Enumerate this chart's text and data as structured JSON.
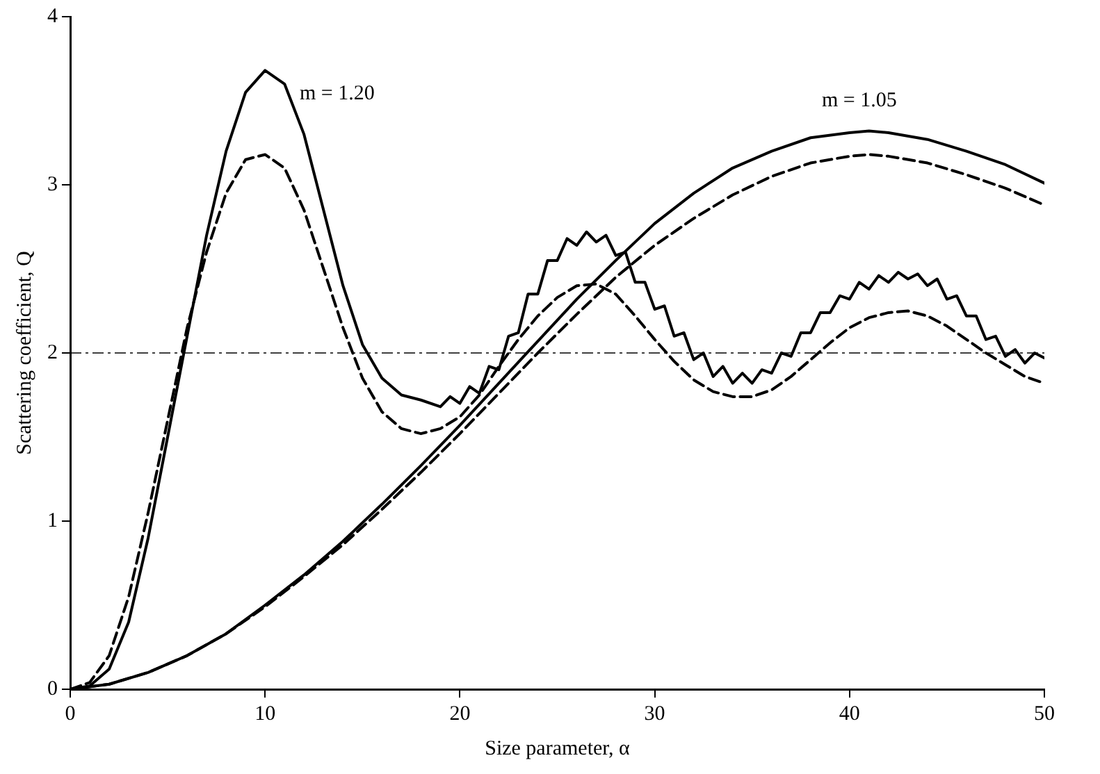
{
  "chart_data": {
    "type": "line",
    "xlabel": "Size parameter, α",
    "ylabel": "Scattering coefficient, Q",
    "xlim": [
      0,
      50
    ],
    "ylim": [
      0,
      4
    ],
    "xticks": [
      0,
      10,
      20,
      30,
      40,
      50
    ],
    "yticks": [
      0,
      1,
      2,
      3,
      4
    ],
    "grid": false,
    "legend": false,
    "marker": "none",
    "series": [
      {
        "color": "#000000",
        "line_style": "solid",
        "x": [
          0,
          1,
          2,
          3,
          4,
          5,
          6,
          7,
          8,
          9,
          10,
          11,
          12,
          13,
          14,
          15,
          16,
          17,
          18,
          19,
          19.5,
          20,
          20.5,
          21,
          21.5,
          22,
          22.5,
          23,
          23.5,
          24,
          24.5,
          25,
          25.5,
          26,
          26.5,
          27,
          27.5,
          28,
          28.5,
          29,
          29.5,
          30,
          30.5,
          31,
          31.5,
          32,
          32.5,
          33,
          33.5,
          34,
          34.5,
          35,
          35.5,
          36,
          36.5,
          37,
          37.5,
          38,
          38.5,
          39,
          39.5,
          40,
          40.5,
          41,
          41.5,
          42,
          42.5,
          43,
          43.5,
          44,
          44.5,
          45,
          45.5,
          46,
          46.5,
          47,
          47.5,
          48,
          48.5,
          49,
          49.5,
          50
        ],
        "values": [
          0,
          0.02,
          0.12,
          0.4,
          0.9,
          1.5,
          2.1,
          2.7,
          3.2,
          3.55,
          3.68,
          3.6,
          3.3,
          2.85,
          2.4,
          2.05,
          1.85,
          1.75,
          1.72,
          1.68,
          1.74,
          1.7,
          1.8,
          1.76,
          1.92,
          1.9,
          2.1,
          2.12,
          2.35,
          2.35,
          2.55,
          2.55,
          2.68,
          2.64,
          2.72,
          2.66,
          2.7,
          2.58,
          2.6,
          2.42,
          2.42,
          2.26,
          2.28,
          2.1,
          2.12,
          1.96,
          2.0,
          1.86,
          1.92,
          1.82,
          1.88,
          1.82,
          1.9,
          1.88,
          2.0,
          1.98,
          2.12,
          2.12,
          2.24,
          2.24,
          2.34,
          2.32,
          2.42,
          2.38,
          2.46,
          2.42,
          2.48,
          2.44,
          2.47,
          2.4,
          2.44,
          2.32,
          2.34,
          2.22,
          2.22,
          2.08,
          2.1,
          1.98,
          2.02,
          1.94,
          2.0,
          1.97
        ]
      },
      {
        "color": "#000000",
        "line_style": "dashed",
        "x": [
          0,
          1,
          2,
          3,
          4,
          5,
          6,
          7,
          8,
          9,
          10,
          11,
          12,
          13,
          14,
          15,
          16,
          17,
          18,
          19,
          20,
          21,
          22,
          23,
          24,
          25,
          26,
          27,
          28,
          29,
          30,
          31,
          32,
          33,
          34,
          35,
          36,
          37,
          38,
          39,
          40,
          41,
          42,
          43,
          44,
          45,
          46,
          47,
          48,
          49,
          50
        ],
        "values": [
          0,
          0.04,
          0.2,
          0.55,
          1.05,
          1.6,
          2.15,
          2.6,
          2.95,
          3.15,
          3.18,
          3.1,
          2.85,
          2.5,
          2.15,
          1.85,
          1.65,
          1.55,
          1.52,
          1.55,
          1.62,
          1.75,
          1.92,
          2.08,
          2.22,
          2.33,
          2.4,
          2.41,
          2.35,
          2.22,
          2.08,
          1.95,
          1.84,
          1.77,
          1.74,
          1.74,
          1.78,
          1.86,
          1.96,
          2.06,
          2.15,
          2.21,
          2.24,
          2.25,
          2.22,
          2.16,
          2.08,
          2.0,
          1.93,
          1.86,
          1.82
        ]
      },
      {
        "color": "#000000",
        "line_style": "solid",
        "x": [
          0,
          2,
          4,
          6,
          8,
          10,
          12,
          14,
          16,
          18,
          20,
          22,
          24,
          26,
          28,
          30,
          32,
          34,
          36,
          38,
          40,
          41,
          42,
          44,
          46,
          48,
          50
        ],
        "values": [
          0,
          0.03,
          0.1,
          0.2,
          0.33,
          0.5,
          0.68,
          0.88,
          1.1,
          1.33,
          1.57,
          1.82,
          2.07,
          2.32,
          2.55,
          2.77,
          2.95,
          3.1,
          3.2,
          3.28,
          3.31,
          3.32,
          3.31,
          3.27,
          3.2,
          3.12,
          3.01
        ]
      },
      {
        "color": "#000000",
        "line_style": "dashed",
        "x": [
          0,
          2,
          4,
          6,
          8,
          10,
          12,
          14,
          16,
          18,
          20,
          22,
          24,
          26,
          28,
          30,
          32,
          34,
          36,
          38,
          40,
          41,
          42,
          44,
          46,
          48,
          50
        ],
        "values": [
          0,
          0.03,
          0.1,
          0.2,
          0.33,
          0.49,
          0.67,
          0.86,
          1.07,
          1.29,
          1.52,
          1.76,
          2.0,
          2.23,
          2.45,
          2.64,
          2.8,
          2.94,
          3.05,
          3.13,
          3.17,
          3.18,
          3.17,
          3.13,
          3.06,
          2.98,
          2.88
        ]
      }
    ],
    "ref_lines": [
      {
        "axis": "y",
        "value": 2,
        "color": "#000000",
        "line_style": "dashdot"
      }
    ],
    "annotations": [
      "m = 1.20",
      "m = 1.05"
    ]
  }
}
